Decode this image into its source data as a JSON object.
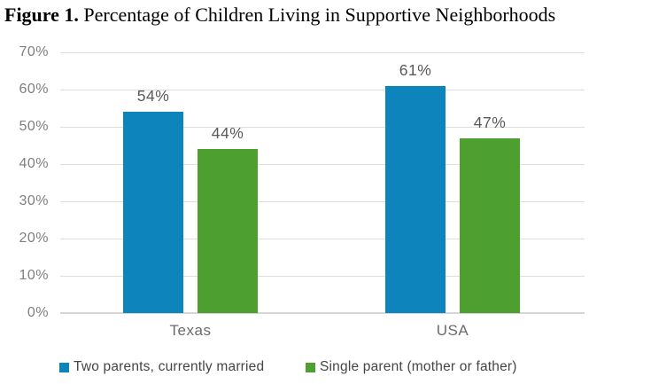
{
  "title": {
    "bold": "Figure 1.",
    "rest": " Percentage of Children Living in Supportive Neighborhoods"
  },
  "chart_data": {
    "type": "bar",
    "title": "Figure 1. Percentage of Children Living in Supportive Neighborhoods",
    "categories": [
      "Texas",
      "USA"
    ],
    "series": [
      {
        "key": "two-parents",
        "name": "Two parents, currently married",
        "color": "#0d84bc",
        "values": [
          54,
          61
        ],
        "labels": [
          "54%",
          "61%"
        ]
      },
      {
        "key": "single-parent",
        "name": "Single parent (mother or father)",
        "color": "#4da02f",
        "values": [
          44,
          47
        ],
        "labels": [
          "44%",
          "47%"
        ]
      }
    ],
    "xlabel": "",
    "ylabel": "",
    "ylim": [
      0,
      70
    ],
    "ytick_step": 10,
    "yticks": [
      "70%",
      "60%",
      "50%",
      "40%",
      "30%",
      "20%",
      "10%",
      "0%"
    ],
    "grid": true,
    "legend_position": "bottom"
  },
  "colors": {
    "blue_bar": "#0d84bc",
    "green_bar": "#4da02f",
    "gridline": "#dedede",
    "axis_line": "#d6d6d6",
    "tick_label": "#7f7f7f",
    "data_label": "#595959",
    "category_label": "#6b6b6b",
    "legend_text": "#454545",
    "title_text": "#000000",
    "background": "#ffffff"
  }
}
